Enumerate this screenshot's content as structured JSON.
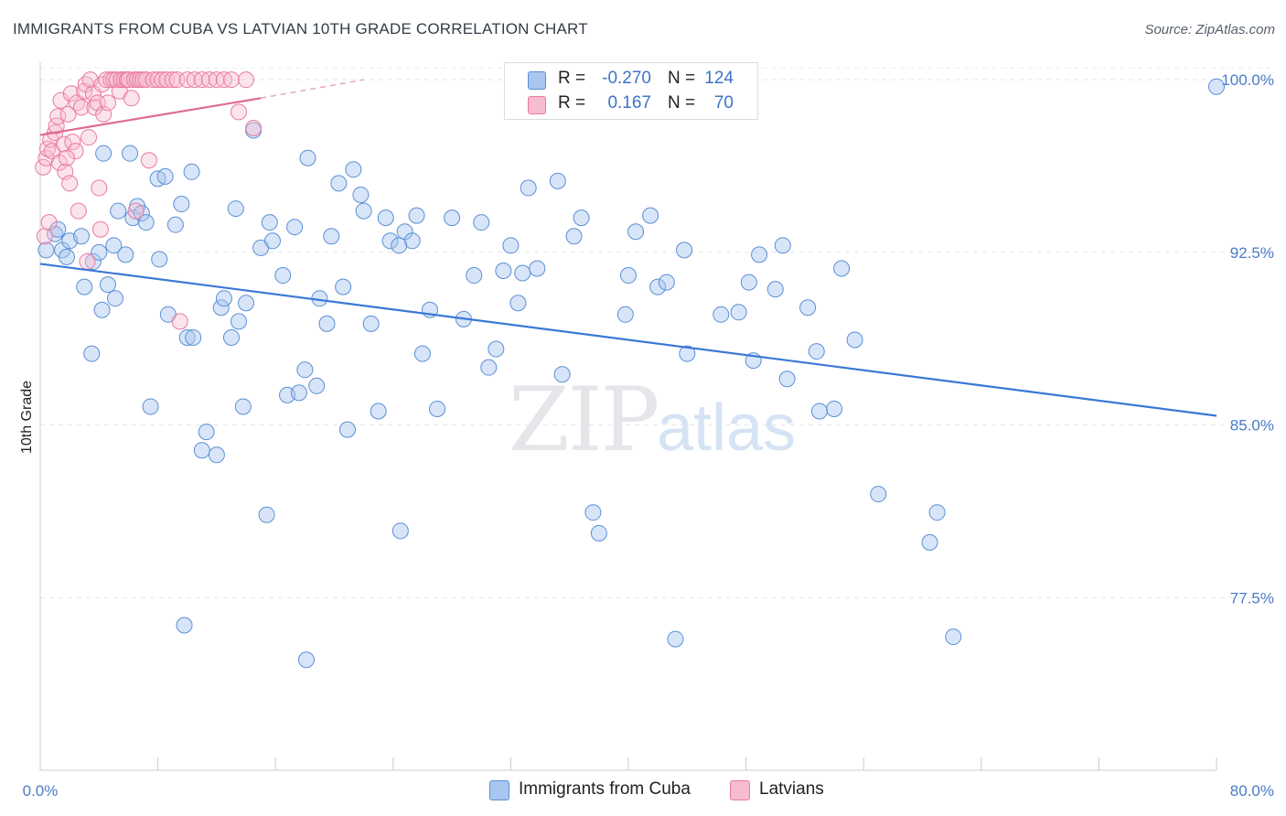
{
  "title": "IMMIGRANTS FROM CUBA VS LATVIAN 10TH GRADE CORRELATION CHART",
  "source": "Source: ZipAtlas.com",
  "watermark": {
    "zip": "ZIP",
    "atlas": "atlas"
  },
  "legend": {
    "rows": [
      {
        "r_label": "R =",
        "r_value": "-0.270",
        "n_label": "N =",
        "n_value": "124",
        "color": "#a8c6f0",
        "border": "#5b8fd6"
      },
      {
        "r_label": "R =",
        "r_value": "0.167",
        "n_label": "N =",
        "n_value": "70",
        "color": "#f7bcd0",
        "border": "#e87aa0"
      }
    ]
  },
  "bottom_legend": [
    {
      "label": "Immigrants from Cuba",
      "color": "#a8c6f0",
      "border": "#5b8fd6"
    },
    {
      "label": "Latvians",
      "color": "#f7bcd0",
      "border": "#e87aa0"
    }
  ],
  "chart_data": {
    "type": "scatter",
    "xlabel": "",
    "ylabel": "10th Grade",
    "xlim": [
      0,
      80
    ],
    "ylim": [
      70.0,
      101.0
    ],
    "x_tick_labels": [
      {
        "value": 0,
        "label": "0.0%"
      },
      {
        "value": 80,
        "label": "80.0%"
      }
    ],
    "y_ticks": [
      {
        "value": 100.0,
        "label": "100.0%"
      },
      {
        "value": 92.5,
        "label": "92.5%"
      },
      {
        "value": 85.0,
        "label": "85.0%"
      },
      {
        "value": 77.5,
        "label": "77.5%"
      }
    ],
    "x_minor_ticks": [
      0,
      8,
      16,
      24,
      32,
      40,
      48,
      56,
      64,
      72,
      80
    ],
    "series": [
      {
        "name": "Immigrants from Cuba",
        "color": "#5b8fd6",
        "fill": "rgba(168,198,240,0.45)",
        "trend": {
          "x0": 0,
          "y0": 92.0,
          "x1": 80,
          "y1": 85.4
        },
        "points": [
          [
            0.4,
            92.6
          ],
          [
            1.0,
            93.3
          ],
          [
            1.5,
            92.6
          ],
          [
            1.8,
            92.3
          ],
          [
            2.0,
            93.0
          ],
          [
            1.2,
            93.5
          ],
          [
            2.8,
            93.2
          ],
          [
            3.0,
            91.0
          ],
          [
            3.5,
            88.1
          ],
          [
            3.6,
            92.1
          ],
          [
            4.0,
            92.5
          ],
          [
            4.2,
            90.0
          ],
          [
            4.6,
            91.1
          ],
          [
            5.0,
            92.8
          ],
          [
            5.1,
            90.5
          ],
          [
            5.3,
            94.3
          ],
          [
            5.8,
            92.4
          ],
          [
            6.1,
            96.8
          ],
          [
            6.3,
            94.0
          ],
          [
            6.6,
            94.5
          ],
          [
            6.9,
            94.2
          ],
          [
            7.2,
            93.8
          ],
          [
            7.5,
            85.8
          ],
          [
            8.0,
            95.7
          ],
          [
            8.1,
            92.2
          ],
          [
            8.5,
            95.8
          ],
          [
            8.7,
            89.8
          ],
          [
            9.2,
            93.7
          ],
          [
            9.6,
            94.6
          ],
          [
            10.0,
            88.8
          ],
          [
            10.3,
            96.0
          ],
          [
            10.4,
            88.8
          ],
          [
            11.0,
            83.9
          ],
          [
            11.3,
            84.7
          ],
          [
            12.0,
            83.7
          ],
          [
            12.3,
            90.1
          ],
          [
            12.5,
            90.5
          ],
          [
            13.0,
            88.8
          ],
          [
            13.3,
            94.4
          ],
          [
            13.5,
            89.5
          ],
          [
            13.8,
            85.8
          ],
          [
            14.0,
            90.3
          ],
          [
            14.5,
            97.8
          ],
          [
            15.0,
            92.7
          ],
          [
            15.4,
            81.1
          ],
          [
            15.6,
            93.8
          ],
          [
            15.8,
            93.0
          ],
          [
            16.5,
            91.5
          ],
          [
            16.8,
            86.3
          ],
          [
            17.3,
            93.6
          ],
          [
            17.6,
            86.4
          ],
          [
            18.0,
            87.4
          ],
          [
            18.2,
            96.6
          ],
          [
            18.8,
            86.7
          ],
          [
            19.0,
            90.5
          ],
          [
            19.5,
            89.4
          ],
          [
            19.8,
            93.2
          ],
          [
            20.3,
            95.5
          ],
          [
            20.6,
            91.0
          ],
          [
            20.9,
            84.8
          ],
          [
            21.3,
            96.1
          ],
          [
            21.8,
            95.0
          ],
          [
            22.0,
            94.3
          ],
          [
            22.5,
            89.4
          ],
          [
            23.0,
            85.6
          ],
          [
            23.5,
            94.0
          ],
          [
            23.8,
            93.0
          ],
          [
            24.5,
            80.4
          ],
          [
            24.8,
            93.4
          ],
          [
            25.3,
            93.0
          ],
          [
            25.6,
            94.1
          ],
          [
            26.0,
            88.1
          ],
          [
            26.5,
            90.0
          ],
          [
            27.0,
            85.7
          ],
          [
            28.0,
            94.0
          ],
          [
            28.8,
            89.6
          ],
          [
            29.5,
            91.5
          ],
          [
            30.0,
            93.8
          ],
          [
            30.5,
            87.5
          ],
          [
            31.0,
            88.3
          ],
          [
            31.5,
            91.7
          ],
          [
            32.0,
            92.8
          ],
          [
            32.5,
            90.3
          ],
          [
            32.8,
            91.6
          ],
          [
            33.2,
            95.3
          ],
          [
            33.8,
            91.8
          ],
          [
            35.2,
            95.6
          ],
          [
            35.5,
            87.2
          ],
          [
            36.3,
            93.2
          ],
          [
            36.8,
            94.0
          ],
          [
            37.6,
            81.2
          ],
          [
            38.0,
            80.3
          ],
          [
            39.8,
            89.8
          ],
          [
            40.0,
            91.5
          ],
          [
            40.5,
            93.4
          ],
          [
            41.5,
            94.1
          ],
          [
            42.0,
            91.0
          ],
          [
            42.6,
            91.2
          ],
          [
            43.2,
            75.7
          ],
          [
            43.8,
            92.6
          ],
          [
            44.0,
            88.1
          ],
          [
            46.3,
            89.8
          ],
          [
            47.5,
            89.9
          ],
          [
            48.2,
            91.2
          ],
          [
            48.5,
            87.8
          ],
          [
            48.9,
            92.4
          ],
          [
            50.0,
            90.9
          ],
          [
            50.5,
            92.8
          ],
          [
            50.8,
            87.0
          ],
          [
            52.2,
            90.1
          ],
          [
            52.8,
            88.2
          ],
          [
            54.0,
            85.7
          ],
          [
            54.5,
            91.8
          ],
          [
            55.4,
            88.7
          ],
          [
            57.0,
            82.0
          ],
          [
            60.5,
            79.9
          ],
          [
            61.0,
            81.2
          ],
          [
            62.1,
            75.8
          ],
          [
            80.0,
            99.7
          ],
          [
            53.0,
            85.6
          ],
          [
            24.4,
            92.8
          ],
          [
            9.8,
            76.3
          ],
          [
            18.1,
            74.8
          ],
          [
            4.3,
            96.8
          ]
        ]
      },
      {
        "name": "Latvians",
        "color": "#e87aa0",
        "fill": "rgba(247,188,208,0.40)",
        "trend": {
          "x0": 0,
          "y0": 97.6,
          "x1": 15,
          "y1": 99.2
        },
        "trend_dashed": {
          "x0": 15,
          "y0": 99.2,
          "x1": 22,
          "y1": 100.0
        },
        "points": [
          [
            0.2,
            96.2
          ],
          [
            0.4,
            96.6
          ],
          [
            0.5,
            97.0
          ],
          [
            0.7,
            97.4
          ],
          [
            0.8,
            96.9
          ],
          [
            1.0,
            97.7
          ],
          [
            1.1,
            98.0
          ],
          [
            1.2,
            98.4
          ],
          [
            1.3,
            96.4
          ],
          [
            1.4,
            99.1
          ],
          [
            1.6,
            97.2
          ],
          [
            1.7,
            96.0
          ],
          [
            1.9,
            98.5
          ],
          [
            2.0,
            95.5
          ],
          [
            2.1,
            99.4
          ],
          [
            2.2,
            97.3
          ],
          [
            2.4,
            96.9
          ],
          [
            2.5,
            99.0
          ],
          [
            2.6,
            94.3
          ],
          [
            2.8,
            98.8
          ],
          [
            3.0,
            99.5
          ],
          [
            3.1,
            99.8
          ],
          [
            3.3,
            97.5
          ],
          [
            3.4,
            100.0
          ],
          [
            3.6,
            99.4
          ],
          [
            3.7,
            98.8
          ],
          [
            3.9,
            99.0
          ],
          [
            4.0,
            95.3
          ],
          [
            4.2,
            99.8
          ],
          [
            4.3,
            98.5
          ],
          [
            4.5,
            100.0
          ],
          [
            4.6,
            99.0
          ],
          [
            4.8,
            100.0
          ],
          [
            5.0,
            100.0
          ],
          [
            5.2,
            100.0
          ],
          [
            5.4,
            99.5
          ],
          [
            5.5,
            100.0
          ],
          [
            5.7,
            100.0
          ],
          [
            5.9,
            100.0
          ],
          [
            6.0,
            100.0
          ],
          [
            6.2,
            99.2
          ],
          [
            6.4,
            100.0
          ],
          [
            6.6,
            100.0
          ],
          [
            6.8,
            100.0
          ],
          [
            7.0,
            100.0
          ],
          [
            7.2,
            100.0
          ],
          [
            7.4,
            96.5
          ],
          [
            7.7,
            100.0
          ],
          [
            8.0,
            100.0
          ],
          [
            8.3,
            100.0
          ],
          [
            8.6,
            100.0
          ],
          [
            9.0,
            100.0
          ],
          [
            9.3,
            100.0
          ],
          [
            9.5,
            89.5
          ],
          [
            10.0,
            100.0
          ],
          [
            10.5,
            100.0
          ],
          [
            11.0,
            100.0
          ],
          [
            11.5,
            100.0
          ],
          [
            12.0,
            100.0
          ],
          [
            12.5,
            100.0
          ],
          [
            13.0,
            100.0
          ],
          [
            13.5,
            98.6
          ],
          [
            14.0,
            100.0
          ],
          [
            14.5,
            97.9
          ],
          [
            0.3,
            93.2
          ],
          [
            3.2,
            92.1
          ],
          [
            4.1,
            93.5
          ],
          [
            6.5,
            94.3
          ],
          [
            0.6,
            93.8
          ],
          [
            1.8,
            96.6
          ]
        ]
      }
    ]
  }
}
